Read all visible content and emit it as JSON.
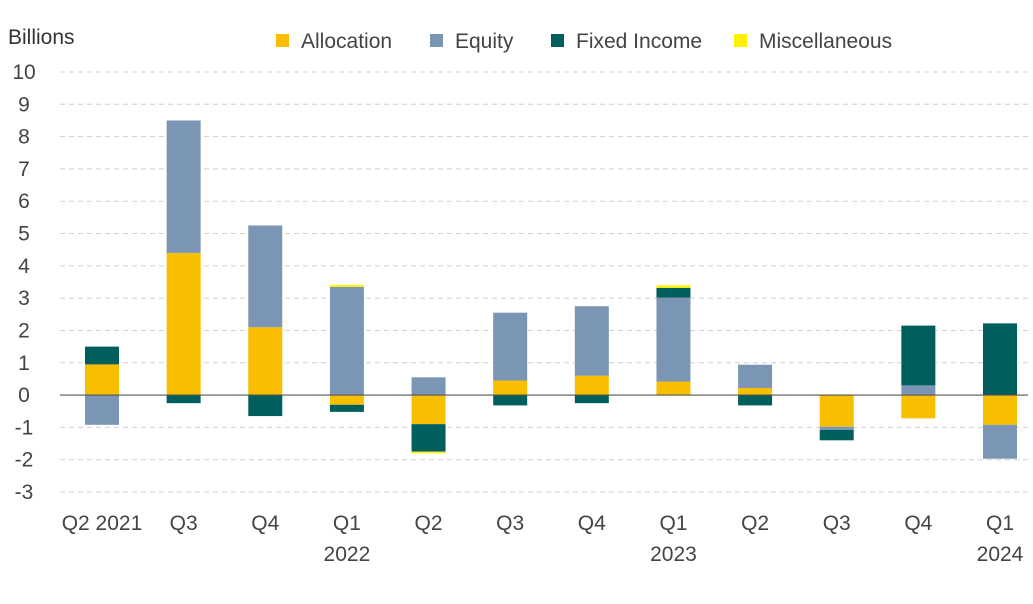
{
  "chart_data": {
    "type": "bar",
    "stacked": true,
    "ylabel": "Billions",
    "ylim": [
      -3,
      10
    ],
    "yticks": [
      -3,
      -2,
      -1,
      0,
      1,
      2,
      3,
      4,
      5,
      6,
      7,
      8,
      9,
      10
    ],
    "grid": true,
    "legend_position": "top",
    "categories": [
      {
        "label": "Q2 2021",
        "sublabel": ""
      },
      {
        "label": "Q3",
        "sublabel": ""
      },
      {
        "label": "Q4",
        "sublabel": ""
      },
      {
        "label": "Q1",
        "sublabel": "2022"
      },
      {
        "label": "Q2",
        "sublabel": ""
      },
      {
        "label": "Q3",
        "sublabel": ""
      },
      {
        "label": "Q4",
        "sublabel": ""
      },
      {
        "label": "Q1",
        "sublabel": "2023"
      },
      {
        "label": "Q2",
        "sublabel": ""
      },
      {
        "label": "Q3",
        "sublabel": ""
      },
      {
        "label": "Q4",
        "sublabel": ""
      },
      {
        "label": "Q1",
        "sublabel": "2024"
      }
    ],
    "series": [
      {
        "name": "Allocation",
        "color": "#F8BE00",
        "values": [
          0.95,
          4.4,
          2.1,
          -0.3,
          -0.9,
          0.45,
          0.6,
          0.42,
          0.22,
          -0.98,
          -0.72,
          -0.92
        ]
      },
      {
        "name": "Equity",
        "color": "#7B96B5",
        "values": [
          -0.92,
          4.1,
          3.15,
          3.35,
          0.55,
          2.1,
          2.15,
          2.6,
          0.72,
          -0.1,
          0.3,
          -1.05
        ]
      },
      {
        "name": "Fixed Income",
        "color": "#005E5D",
        "values": [
          0.55,
          -0.25,
          -0.65,
          -0.22,
          -0.85,
          -0.32,
          -0.25,
          0.3,
          -0.32,
          -0.32,
          1.85,
          2.22
        ]
      },
      {
        "name": "Miscellaneous",
        "color": "#FFF200",
        "values": [
          0,
          0,
          0,
          0.06,
          -0.05,
          0,
          0,
          0.08,
          0,
          0,
          0,
          0
        ]
      }
    ]
  }
}
